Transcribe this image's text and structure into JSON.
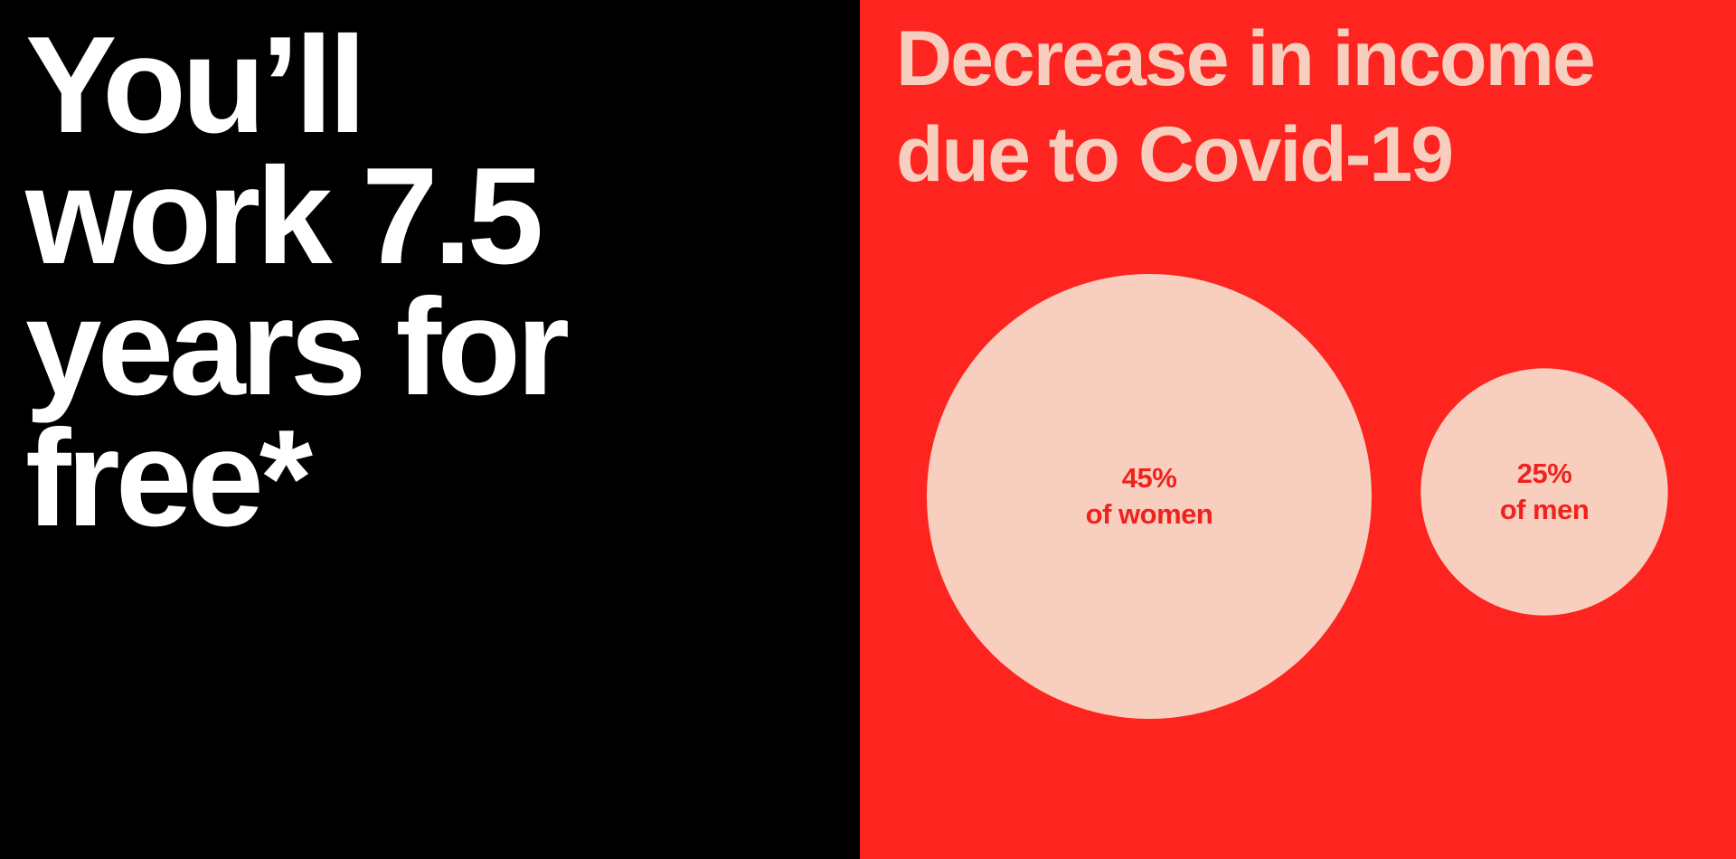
{
  "left_panel": {
    "headline_lines": [
      "You’ll",
      "work 7.5",
      "years for",
      "free*"
    ],
    "background": "#000000",
    "text_color": "#ffffff"
  },
  "colors": {
    "panel": "#fe2420",
    "bubble": "#f8cfbe",
    "label": "#f0221e"
  },
  "chart_data": {
    "type": "scatter",
    "title_lines": [
      "Decrease in income",
      "due to Covid-19"
    ],
    "title": "Decrease in income due to Covid-19",
    "series": [
      {
        "name": "of women",
        "value": 45,
        "label": "45%",
        "sublabel": "of women"
      },
      {
        "name": "of men",
        "value": 25,
        "label": "25%",
        "sublabel": "of men"
      }
    ],
    "encoding": "bubble radius proportional to value",
    "grid": false
  }
}
